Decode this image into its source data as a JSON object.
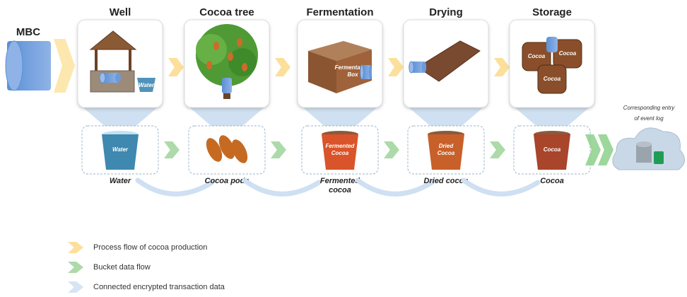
{
  "source": {
    "label": "MBC"
  },
  "stages": [
    {
      "title": "Well",
      "image_labels": [
        "Water"
      ]
    },
    {
      "title": "Cocoa tree",
      "image_labels": []
    },
    {
      "title": "Fermentation",
      "image_labels": [
        "Fermentation",
        "Box"
      ]
    },
    {
      "title": "Drying",
      "image_labels": []
    },
    {
      "title": "Storage",
      "image_labels": [
        "Cocoa",
        "Cocoa",
        "Cocoa"
      ]
    }
  ],
  "buckets": [
    {
      "label_lines": [
        "Water"
      ],
      "caption_lines": [
        "Water"
      ]
    },
    {
      "label_lines": [],
      "caption_lines": [
        "Cocoa pods"
      ]
    },
    {
      "label_lines": [
        "Fermented",
        "Cocoa"
      ],
      "caption_lines": [
        "Fermented",
        "cocoa"
      ]
    },
    {
      "label_lines": [
        "Dried",
        "Cocoa"
      ],
      "caption_lines": [
        "Dried cocoa"
      ]
    },
    {
      "label_lines": [
        "Cocoa"
      ],
      "caption_lines": [
        "Cocoa"
      ]
    }
  ],
  "event_log": {
    "caption_lines": [
      "Corresponding entry",
      "of event log"
    ]
  },
  "legend": [
    {
      "label": "Process flow of cocoa production"
    },
    {
      "label": "Bucket data flow"
    },
    {
      "label": "Connected encrypted transaction data"
    }
  ]
}
